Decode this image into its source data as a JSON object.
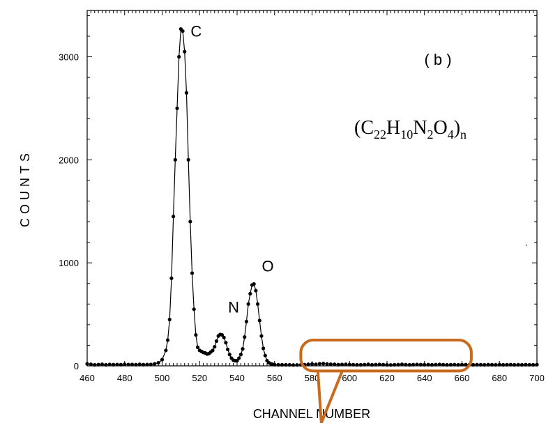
{
  "chart_data": {
    "type": "scatter",
    "title": "",
    "xlabel": "CHANNEL NUMBER",
    "ylabel": "COUNTS",
    "xlim": [
      460,
      700
    ],
    "ylim": [
      0,
      3450
    ],
    "x_ticks": [
      "460",
      "480",
      "500",
      "520",
      "540",
      "560",
      "580",
      "600",
      "620",
      "640",
      "660",
      "680",
      "700"
    ],
    "y_ticks": [
      "0",
      "1000",
      "2000",
      "3000"
    ],
    "panel_label": "( b )",
    "formula": {
      "open": "(",
      "C": "C",
      "C_sub": "22",
      "H": "H",
      "H_sub": "10",
      "N": "N",
      "N_sub": "2",
      "O": "O",
      "O_sub": "4",
      "close": ")",
      "n_sub": "n"
    },
    "annotations": [
      {
        "text": "C",
        "x": 510,
        "y": 3250
      },
      {
        "text": "N",
        "x": 530,
        "y": 570
      },
      {
        "text": "O",
        "x": 548,
        "y": 970
      }
    ],
    "series": [
      {
        "x": [
          460,
          462,
          464,
          466,
          468,
          470,
          472,
          474,
          476,
          478,
          480,
          482,
          484,
          486,
          488,
          490,
          492,
          494,
          496,
          498,
          500,
          502,
          503,
          504,
          505,
          506,
          507,
          508,
          509,
          510,
          511,
          512,
          513,
          514,
          515,
          516,
          517,
          518,
          519,
          520,
          521,
          522,
          523,
          524,
          525,
          526,
          527,
          528,
          529,
          530,
          531,
          532,
          533,
          534,
          535,
          536,
          537,
          538,
          539,
          540,
          541,
          542,
          543,
          544,
          545,
          546,
          547,
          548,
          549,
          550,
          551,
          552,
          553,
          554,
          555,
          556,
          557,
          558,
          559,
          560,
          562,
          564,
          566,
          568,
          570,
          572,
          574,
          576,
          578,
          580,
          582,
          584,
          586,
          588,
          590,
          592,
          594,
          596,
          598,
          600,
          602,
          604,
          606,
          608,
          610,
          612,
          614,
          616,
          618,
          620,
          622,
          624,
          626,
          628,
          630,
          632,
          634,
          636,
          638,
          640,
          642,
          644,
          646,
          648,
          650,
          652,
          654,
          656,
          658,
          660,
          662,
          664,
          666,
          668,
          670,
          672,
          674,
          676,
          678,
          680,
          682,
          684,
          686,
          688,
          690,
          692,
          694,
          696,
          698,
          700
        ],
        "y": [
          20,
          15,
          10,
          12,
          15,
          10,
          14,
          12,
          13,
          12,
          15,
          13,
          14,
          12,
          15,
          12,
          13,
          14,
          20,
          30,
          60,
          150,
          250,
          450,
          850,
          1450,
          2000,
          2500,
          3000,
          3270,
          3250,
          3050,
          2650,
          2000,
          1400,
          900,
          550,
          300,
          180,
          150,
          140,
          130,
          125,
          115,
          120,
          135,
          150,
          185,
          240,
          290,
          305,
          300,
          275,
          225,
          160,
          110,
          75,
          55,
          50,
          50,
          75,
          110,
          165,
          280,
          430,
          600,
          700,
          785,
          795,
          730,
          600,
          440,
          290,
          170,
          100,
          50,
          30,
          20,
          15,
          12,
          10,
          10,
          10,
          10,
          8,
          9,
          10,
          12,
          15,
          18,
          15,
          20,
          22,
          18,
          16,
          15,
          12,
          14,
          15,
          13,
          12,
          10,
          10,
          12,
          15,
          10,
          12,
          14,
          12,
          10,
          9,
          11,
          12,
          15,
          12,
          10,
          12,
          14,
          12,
          11,
          12,
          10,
          12,
          14,
          12,
          10,
          11,
          12,
          10,
          12,
          12,
          11,
          10,
          12,
          11,
          10,
          12,
          11,
          10,
          12,
          10,
          11,
          12,
          10,
          11,
          10,
          12,
          11,
          10,
          12
        ]
      }
    ],
    "callout": {
      "x_range": [
        574,
        665
      ],
      "y_range": [
        -50,
        250
      ],
      "color": "#c86b1e"
    }
  }
}
